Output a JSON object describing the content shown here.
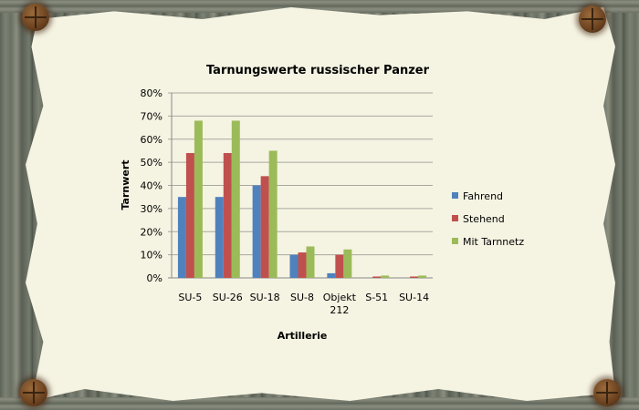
{
  "chart_data": {
    "type": "bar",
    "title": "Tarnungswerte russischer Panzer",
    "xlabel": "Artillerie",
    "ylabel": "Tarnwert",
    "categories": [
      "SU-5",
      "SU-26",
      "SU-18",
      "SU-8",
      "Objekt 212",
      "S-51",
      "SU-14"
    ],
    "series": [
      {
        "name": "Fahrend",
        "color": "#4f81bd",
        "values": [
          35,
          35,
          40,
          10,
          2,
          0,
          0
        ]
      },
      {
        "name": "Stehend",
        "color": "#c0504d",
        "values": [
          54,
          54,
          44,
          11,
          10,
          0.6,
          0.6
        ]
      },
      {
        "name": "Mit Tarnnetz",
        "color": "#9bbb59",
        "values": [
          68,
          68,
          55,
          13.6,
          12.3,
          1,
          1
        ]
      }
    ],
    "ylim": [
      0,
      80
    ],
    "yticks": [
      "0%",
      "10%",
      "20%",
      "30%",
      "40%",
      "50%",
      "60%",
      "70%",
      "80%"
    ],
    "grid": true,
    "legend": "right"
  }
}
